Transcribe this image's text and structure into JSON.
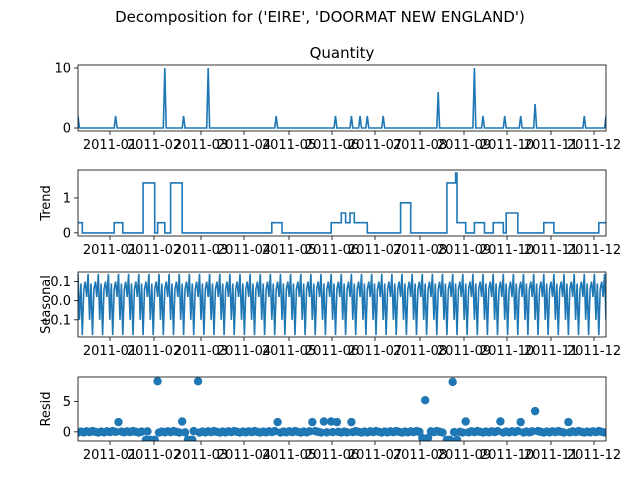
{
  "suptitle": "Decomposition for ('EIRE', 'DOORMAT NEW ENGLAND')",
  "series_color": "#1f77b4",
  "x_tick_labels": [
    "2011-01",
    "2011-02",
    "2011-03",
    "2011-04",
    "2011-05",
    "2011-06",
    "2011-07",
    "2011-08",
    "2011-09",
    "2011-10",
    "2011-11",
    "2011-12"
  ],
  "chart_data": [
    {
      "type": "line",
      "title": "Quantity",
      "ylabel": "",
      "ylim": [
        -0.5,
        10.5
      ],
      "yticks": [
        0,
        10
      ],
      "x_domain": [
        0,
        365
      ],
      "spikes": [
        {
          "x": 0,
          "y": 2
        },
        {
          "x": 26,
          "y": 2
        },
        {
          "x": 60,
          "y": 10
        },
        {
          "x": 73,
          "y": 2
        },
        {
          "x": 90,
          "y": 10
        },
        {
          "x": 137,
          "y": 2
        },
        {
          "x": 178,
          "y": 2
        },
        {
          "x": 189,
          "y": 2
        },
        {
          "x": 195,
          "y": 2
        },
        {
          "x": 200,
          "y": 2
        },
        {
          "x": 211,
          "y": 2
        },
        {
          "x": 249,
          "y": 6
        },
        {
          "x": 274,
          "y": 10
        },
        {
          "x": 280,
          "y": 2
        },
        {
          "x": 295,
          "y": 2
        },
        {
          "x": 306,
          "y": 2
        },
        {
          "x": 316,
          "y": 4
        },
        {
          "x": 350,
          "y": 2
        },
        {
          "x": 365,
          "y": 2
        }
      ]
    },
    {
      "type": "line",
      "title": "",
      "ylabel": "Trend",
      "ylim": [
        -0.09,
        1.8
      ],
      "yticks": [
        0,
        1
      ],
      "x_domain": [
        0,
        365
      ],
      "steps": [
        {
          "x0": 0,
          "x1": 3,
          "y": 0.29
        },
        {
          "x0": 3,
          "x1": 25,
          "y": 0
        },
        {
          "x0": 25,
          "x1": 31,
          "y": 0.29
        },
        {
          "x0": 31,
          "x1": 45,
          "y": 0
        },
        {
          "x0": 45,
          "x1": 53,
          "y": 1.43
        },
        {
          "x0": 53,
          "x1": 55,
          "y": 0
        },
        {
          "x0": 55,
          "x1": 60,
          "y": 0.29
        },
        {
          "x0": 60,
          "x1": 64,
          "y": 0
        },
        {
          "x0": 64,
          "x1": 72,
          "y": 1.43
        },
        {
          "x0": 72,
          "x1": 134,
          "y": 0
        },
        {
          "x0": 134,
          "x1": 141,
          "y": 0.29
        },
        {
          "x0": 141,
          "x1": 175,
          "y": 0
        },
        {
          "x0": 175,
          "x1": 182,
          "y": 0.29
        },
        {
          "x0": 182,
          "x1": 185,
          "y": 0.57
        },
        {
          "x0": 185,
          "x1": 188,
          "y": 0.29
        },
        {
          "x0": 188,
          "x1": 191,
          "y": 0.57
        },
        {
          "x0": 191,
          "x1": 200,
          "y": 0.29
        },
        {
          "x0": 200,
          "x1": 209,
          "y": 0
        },
        {
          "x0": 209,
          "x1": 223,
          "y": 0
        },
        {
          "x0": 223,
          "x1": 230,
          "y": 0.86
        },
        {
          "x0": 230,
          "x1": 255,
          "y": 0
        },
        {
          "x0": 255,
          "x1": 261,
          "y": 1.43
        },
        {
          "x0": 261,
          "x1": 262,
          "y": 1.71
        },
        {
          "x0": 262,
          "x1": 268,
          "y": 0.29
        },
        {
          "x0": 268,
          "x1": 274,
          "y": 0
        },
        {
          "x0": 274,
          "x1": 281,
          "y": 0.29
        },
        {
          "x0": 281,
          "x1": 287,
          "y": 0
        },
        {
          "x0": 287,
          "x1": 294,
          "y": 0.29
        },
        {
          "x0": 294,
          "x1": 296,
          "y": 0
        },
        {
          "x0": 296,
          "x1": 304,
          "y": 0.57
        },
        {
          "x0": 304,
          "x1": 322,
          "y": 0
        },
        {
          "x0": 322,
          "x1": 329,
          "y": 0.29
        },
        {
          "x0": 329,
          "x1": 360,
          "y": 0
        },
        {
          "x0": 360,
          "x1": 365,
          "y": 0.29
        }
      ]
    },
    {
      "type": "line",
      "title": "",
      "ylabel": "Seasonal",
      "ylim": [
        -0.19,
        0.15
      ],
      "yticks": [
        0.1,
        0.0,
        -0.1
      ],
      "ytick_labels": [
        "0.1",
        "0.0",
        "−0.1"
      ],
      "x_domain": [
        0,
        365
      ],
      "period": 7,
      "cycle_values": [
        0.14,
        -0.1,
        0.09,
        -0.18,
        0.06,
        0.1,
        0.02
      ]
    },
    {
      "type": "scatter",
      "title": "",
      "ylabel": "Resid",
      "ylim": [
        -1.5,
        9.0
      ],
      "yticks": [
        0,
        5
      ],
      "x_domain": [
        0,
        365
      ],
      "baseline": 0,
      "outliers": [
        {
          "x": 28,
          "y": 1.6
        },
        {
          "x": 47,
          "y": -1.3
        },
        {
          "x": 50,
          "y": -1.3
        },
        {
          "x": 53,
          "y": -1.3
        },
        {
          "x": 55,
          "y": 8.3
        },
        {
          "x": 72,
          "y": 1.7
        },
        {
          "x": 76,
          "y": -1.3
        },
        {
          "x": 79,
          "y": -1.3
        },
        {
          "x": 83,
          "y": 8.3
        },
        {
          "x": 138,
          "y": 1.6
        },
        {
          "x": 162,
          "y": 1.6
        },
        {
          "x": 170,
          "y": 1.7
        },
        {
          "x": 175,
          "y": 1.7
        },
        {
          "x": 179,
          "y": 1.6
        },
        {
          "x": 189,
          "y": 1.6
        },
        {
          "x": 238,
          "y": -1.0
        },
        {
          "x": 240,
          "y": 5.2
        },
        {
          "x": 242,
          "y": -1.0
        },
        {
          "x": 255,
          "y": -1.3
        },
        {
          "x": 257,
          "y": -1.3
        },
        {
          "x": 259,
          "y": 8.2
        },
        {
          "x": 262,
          "y": -1.3
        },
        {
          "x": 268,
          "y": 1.7
        },
        {
          "x": 292,
          "y": 1.7
        },
        {
          "x": 306,
          "y": 1.6
        },
        {
          "x": 316,
          "y": 3.4
        },
        {
          "x": 339,
          "y": 1.6
        }
      ]
    }
  ]
}
